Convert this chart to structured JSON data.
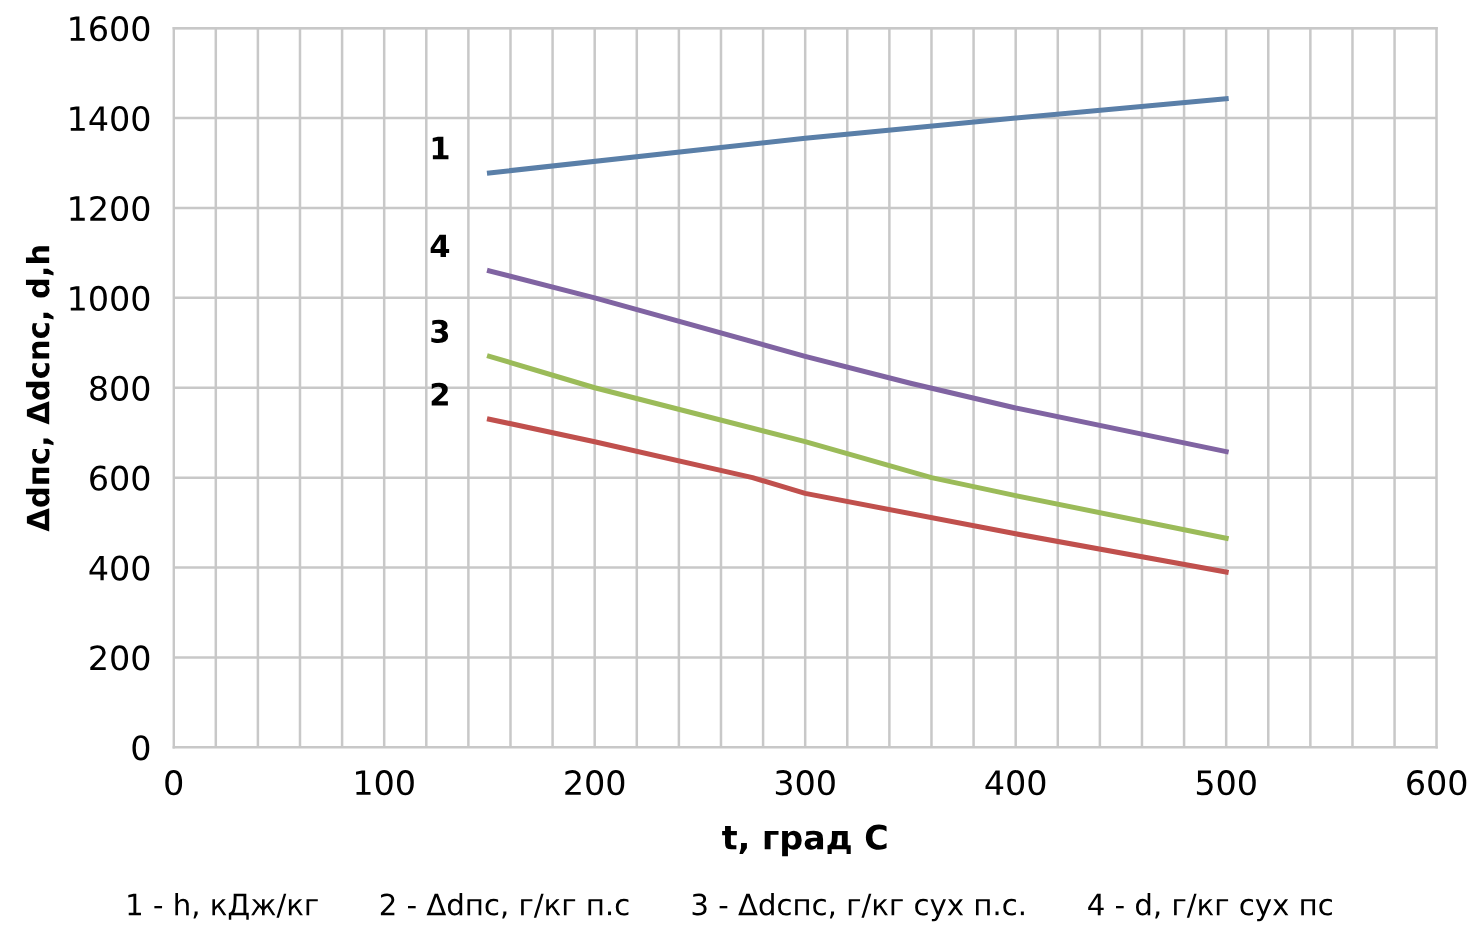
{
  "chart_data": {
    "type": "line",
    "xlabel": "t, град С",
    "ylabel": "Δdпс, Δdсnс, d,h",
    "xlim": [
      0,
      600
    ],
    "ylim": [
      0,
      1600
    ],
    "xticks": [
      0,
      {
        "value": 20,
        "label": null
      },
      {
        "value": 40,
        "label": null
      },
      {
        "value": 60,
        "label": null
      },
      {
        "value": 80,
        "label": null
      },
      100,
      {
        "value": 120,
        "label": null
      },
      {
        "value": 140,
        "label": null
      },
      {
        "value": 160,
        "label": null
      },
      {
        "value": 180,
        "label": null
      },
      200,
      {
        "value": 220,
        "label": null
      },
      {
        "value": 240,
        "label": null
      },
      {
        "value": 260,
        "label": null
      },
      {
        "value": 280,
        "label": null
      },
      300,
      {
        "value": 320,
        "label": null
      },
      {
        "value": 340,
        "label": null
      },
      {
        "value": 360,
        "label": null
      },
      {
        "value": 380,
        "label": null
      },
      400,
      {
        "value": 420,
        "label": null
      },
      {
        "value": 440,
        "label": null
      },
      {
        "value": 460,
        "label": null
      },
      {
        "value": 480,
        "label": null
      },
      500,
      {
        "value": 520,
        "label": null
      },
      {
        "value": 540,
        "label": null
      },
      {
        "value": 560,
        "label": null
      },
      {
        "value": 580,
        "label": null
      },
      600
    ],
    "yticks": [
      0,
      200,
      400,
      600,
      800,
      1000,
      1200,
      1400,
      1600
    ],
    "grid": true,
    "legend": false,
    "marker": "none",
    "line_style": "solid",
    "series": [
      {
        "name": "1",
        "color": "#5a7fa8",
        "x": [
          150,
          300,
          400,
          500
        ],
        "values": [
          1278,
          1355,
          1400,
          1443
        ]
      },
      {
        "name": "4",
        "color": "#8064a2",
        "x": [
          150,
          200,
          300,
          350,
          400,
          500
        ],
        "values": [
          1060,
          1000,
          870,
          810,
          755,
          658
        ]
      },
      {
        "name": "3",
        "color": "#9bbb59",
        "x": [
          150,
          200,
          300,
          360,
          400,
          500
        ],
        "values": [
          870,
          800,
          680,
          600,
          560,
          465
        ]
      },
      {
        "name": "2",
        "color": "#c0504d",
        "x": [
          150,
          200,
          275,
          300,
          400,
          500
        ],
        "values": [
          730,
          680,
          600,
          565,
          475,
          390
        ]
      }
    ],
    "annotations": [
      "1 - h, кДж/кг",
      "2 - Δdпс, г/кг п.с",
      "3 - Δdспс, г/кг сух п.с.",
      "4 - d, г/кг сух пс"
    ]
  }
}
